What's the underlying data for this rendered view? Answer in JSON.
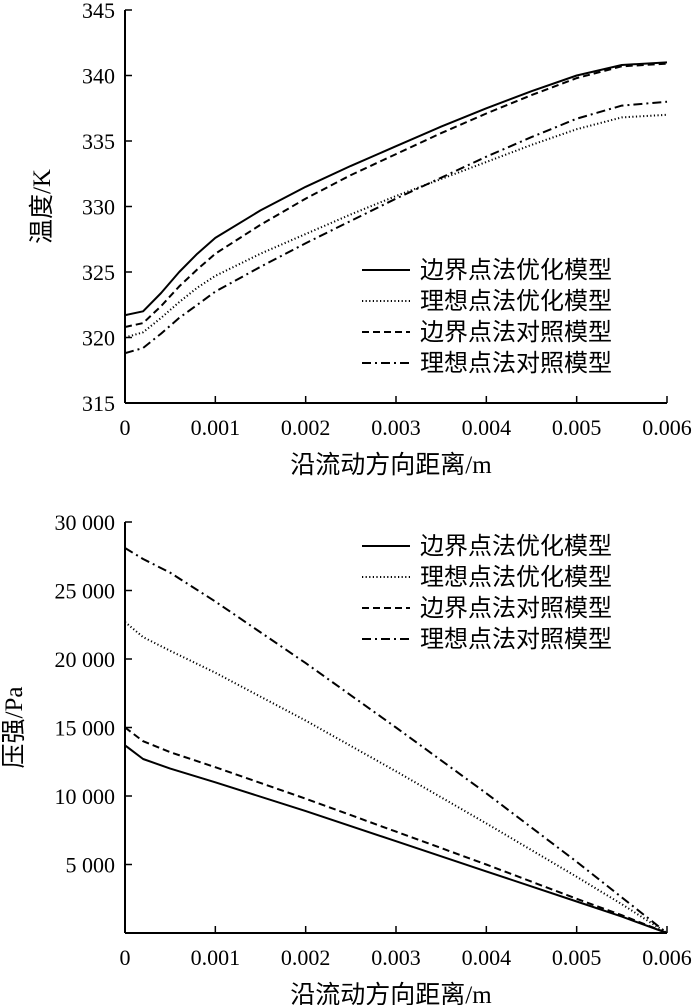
{
  "chart_data": [
    {
      "type": "line",
      "xlabel": "沿流动方向距离/m",
      "ylabel": "温度/K",
      "xlim": [
        0,
        0.006
      ],
      "ylim": [
        315,
        345
      ],
      "x_ticks": [
        0,
        0.001,
        0.002,
        0.003,
        0.004,
        0.005,
        0.006
      ],
      "x_tick_labels": [
        "0",
        "0.001",
        "0.002",
        "0.003",
        "0.004",
        "0.005",
        "0.006"
      ],
      "y_ticks": [
        315,
        320,
        325,
        330,
        335,
        340,
        345
      ],
      "y_tick_labels": [
        "315",
        "320",
        "325",
        "330",
        "335",
        "340",
        "345"
      ],
      "legend_position": "lower-right",
      "series": [
        {
          "name": "边界点法优化模型",
          "style": "solid",
          "x": [
            0,
            0.0002,
            0.0004,
            0.0006,
            0.0008,
            0.001,
            0.0015,
            0.002,
            0.0025,
            0.003,
            0.0035,
            0.004,
            0.0045,
            0.005,
            0.0055,
            0.006
          ],
          "y": [
            321.7,
            322.0,
            323.4,
            325.0,
            326.4,
            327.6,
            329.7,
            331.5,
            333.1,
            334.6,
            336.1,
            337.5,
            338.8,
            340.0,
            340.8,
            341.0
          ]
        },
        {
          "name": "理想点法优化模型",
          "style": "dotted",
          "x": [
            0,
            0.0002,
            0.0004,
            0.0006,
            0.0008,
            0.001,
            0.0015,
            0.002,
            0.0025,
            0.003,
            0.0035,
            0.004,
            0.0045,
            0.005,
            0.0055,
            0.006
          ],
          "y": [
            320.0,
            320.4,
            321.5,
            322.7,
            323.8,
            324.7,
            326.4,
            327.9,
            329.4,
            330.8,
            332.1,
            333.4,
            334.7,
            335.9,
            336.8,
            337.0
          ]
        },
        {
          "name": "边界点法对照模型",
          "style": "dashed",
          "x": [
            0,
            0.0002,
            0.0004,
            0.0006,
            0.0008,
            0.001,
            0.0015,
            0.002,
            0.0025,
            0.003,
            0.0035,
            0.004,
            0.0045,
            0.005,
            0.0055,
            0.006
          ],
          "y": [
            320.8,
            321.1,
            322.4,
            323.9,
            325.2,
            326.4,
            328.6,
            330.6,
            332.4,
            334.0,
            335.6,
            337.1,
            338.5,
            339.8,
            340.7,
            340.9
          ]
        },
        {
          "name": "理想点法对照模型",
          "style": "dashdot",
          "x": [
            0,
            0.0002,
            0.0004,
            0.0006,
            0.0008,
            0.001,
            0.0015,
            0.002,
            0.0025,
            0.003,
            0.0035,
            0.004,
            0.0045,
            0.005,
            0.0055,
            0.006
          ],
          "y": [
            318.8,
            319.2,
            320.3,
            321.5,
            322.5,
            323.5,
            325.4,
            327.2,
            328.9,
            330.6,
            332.2,
            333.8,
            335.3,
            336.7,
            337.7,
            338.0
          ]
        }
      ]
    },
    {
      "type": "line",
      "xlabel": "沿流动方向距离/m",
      "ylabel": "压强/Pa",
      "xlim": [
        0,
        0.006
      ],
      "ylim": [
        0,
        30000
      ],
      "x_ticks": [
        0,
        0.001,
        0.002,
        0.003,
        0.004,
        0.005,
        0.006
      ],
      "x_tick_labels": [
        "0",
        "0.001",
        "0.002",
        "0.003",
        "0.004",
        "0.005",
        "0.006"
      ],
      "y_ticks": [
        0,
        5000,
        10000,
        15000,
        20000,
        25000,
        30000
      ],
      "y_tick_labels": [
        "",
        "5 000",
        "10 000",
        "15 000",
        "20 000",
        "25 000",
        "30 000"
      ],
      "legend_position": "top-right",
      "series": [
        {
          "name": "边界点法优化模型",
          "style": "solid",
          "x": [
            0,
            0.0002,
            0.0005,
            0.001,
            0.002,
            0.003,
            0.004,
            0.005,
            0.0055,
            0.006
          ],
          "y": [
            13700,
            12700,
            12000,
            11000,
            8900,
            6700,
            4500,
            2300,
            1200,
            0
          ]
        },
        {
          "name": "理想点法优化模型",
          "style": "dotted",
          "x": [
            0,
            0.0002,
            0.0005,
            0.001,
            0.002,
            0.003,
            0.004,
            0.005,
            0.0055,
            0.006
          ],
          "y": [
            22700,
            21600,
            20600,
            19000,
            15500,
            11800,
            8000,
            4100,
            2100,
            0
          ]
        },
        {
          "name": "边界点法对照模型",
          "style": "dashed",
          "x": [
            0,
            0.0002,
            0.0005,
            0.001,
            0.002,
            0.003,
            0.004,
            0.005,
            0.0055,
            0.006
          ],
          "y": [
            15000,
            14000,
            13200,
            12100,
            9800,
            7400,
            5000,
            2500,
            1300,
            0
          ]
        },
        {
          "name": "理想点法对照模型",
          "style": "dashdot",
          "x": [
            0,
            0.0002,
            0.0005,
            0.001,
            0.002,
            0.003,
            0.004,
            0.005,
            0.0055,
            0.006
          ],
          "y": [
            28100,
            27300,
            26300,
            24200,
            19700,
            15000,
            10200,
            5200,
            2600,
            0
          ]
        }
      ]
    }
  ]
}
